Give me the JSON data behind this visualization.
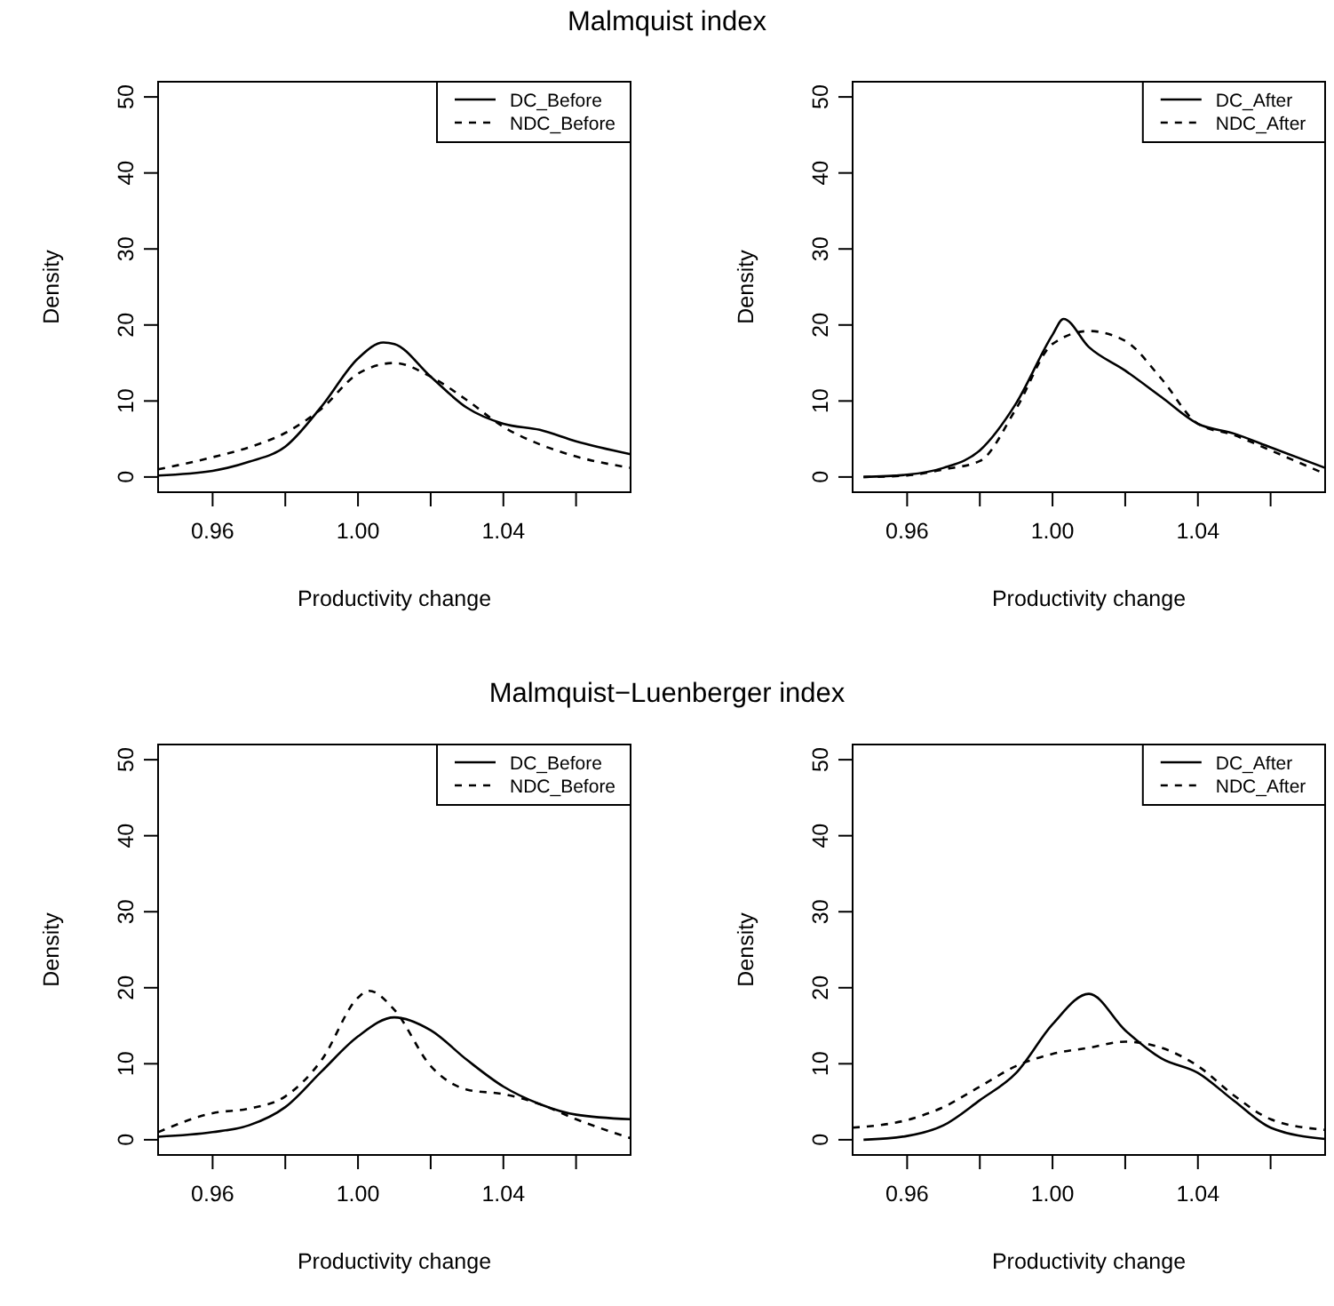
{
  "chart_data": [
    {
      "type": "line",
      "title": "Malmquist index",
      "xlabel": "Productivity change",
      "ylabel": "Density",
      "xlim": [
        0.945,
        1.075
      ],
      "ylim": [
        -2,
        52
      ],
      "xticks": [
        {
          "value": 0.96,
          "label": "0.96"
        },
        {
          "value": 0.98,
          "label": null
        },
        {
          "value": 1.0,
          "label": "1.00"
        },
        {
          "value": 1.02,
          "label": null
        },
        {
          "value": 1.04,
          "label": "1.04"
        },
        {
          "value": 1.06,
          "label": null
        }
      ],
      "yticks": [
        0,
        10,
        20,
        30,
        40,
        50
      ],
      "legend": "top right",
      "series": [
        {
          "name": "DC_Before",
          "color": "#000000",
          "line_style": "solid",
          "x": [
            0.945,
            0.96,
            0.97,
            0.98,
            0.99,
            1.0,
            1.007,
            1.01,
            1.02,
            1.03,
            1.04,
            1.05,
            1.06,
            1.075
          ],
          "values": [
            0.2,
            0.8,
            2,
            4,
            9.3,
            15.6,
            17.7,
            17.5,
            13.2,
            9.1,
            7,
            6.2,
            4.7,
            3.0
          ]
        },
        {
          "name": "NDC_Before",
          "color": "#000000",
          "line_style": "dashed",
          "x": [
            0.945,
            0.96,
            0.97,
            0.98,
            0.99,
            1.0,
            1.01,
            1.02,
            1.03,
            1.04,
            1.05,
            1.06,
            1.075
          ],
          "values": [
            1.0,
            2.6,
            3.9,
            5.8,
            9.0,
            13.6,
            15.0,
            13.2,
            10.1,
            6.6,
            4.3,
            2.7,
            1.2
          ]
        }
      ]
    },
    {
      "type": "line",
      "xlabel": "Productivity change",
      "ylabel": "Density",
      "xlim": [
        0.945,
        1.075
      ],
      "ylim": [
        -2,
        52
      ],
      "xticks": [
        {
          "value": 0.96,
          "label": "0.96"
        },
        {
          "value": 0.98,
          "label": null
        },
        {
          "value": 1.0,
          "label": "1.00"
        },
        {
          "value": 1.02,
          "label": null
        },
        {
          "value": 1.04,
          "label": "1.04"
        },
        {
          "value": 1.06,
          "label": null
        }
      ],
      "yticks": [
        0,
        10,
        20,
        30,
        40,
        50
      ],
      "legend": "top right",
      "series": [
        {
          "name": "DC_After",
          "color": "#000000",
          "line_style": "solid",
          "x": [
            0.948,
            0.96,
            0.97,
            0.98,
            0.99,
            1.0,
            1.003,
            1.01,
            1.02,
            1.03,
            1.04,
            1.05,
            1.06,
            1.075
          ],
          "values": [
            0,
            0.3,
            1.2,
            3.5,
            9.7,
            18.7,
            20.8,
            17.1,
            14.0,
            10.5,
            7,
            5.7,
            3.9,
            1.2
          ]
        },
        {
          "name": "NDC_After",
          "color": "#000000",
          "line_style": "dashed",
          "x": [
            0.948,
            0.96,
            0.97,
            0.98,
            0.99,
            1.0,
            1.01,
            1.02,
            1.03,
            1.04,
            1.05,
            1.06,
            1.075
          ],
          "values": [
            0,
            0.2,
            1.0,
            2.1,
            9.0,
            17.5,
            19.2,
            17.9,
            12.9,
            7,
            5.5,
            3.5,
            0.4
          ]
        }
      ]
    },
    {
      "type": "line",
      "title": "Malmquist−Luenberger index",
      "xlabel": "Productivity change",
      "ylabel": "Density",
      "xlim": [
        0.945,
        1.075
      ],
      "ylim": [
        -2,
        52
      ],
      "xticks": [
        {
          "value": 0.96,
          "label": "0.96"
        },
        {
          "value": 0.98,
          "label": null
        },
        {
          "value": 1.0,
          "label": "1.00"
        },
        {
          "value": 1.02,
          "label": null
        },
        {
          "value": 1.04,
          "label": "1.04"
        },
        {
          "value": 1.06,
          "label": null
        }
      ],
      "yticks": [
        0,
        10,
        20,
        30,
        40,
        50
      ],
      "legend": "top right",
      "series": [
        {
          "name": "DC_Before",
          "color": "#000000",
          "line_style": "solid",
          "x": [
            0.945,
            0.96,
            0.97,
            0.98,
            0.99,
            1.0,
            1.01,
            1.02,
            1.03,
            1.04,
            1.05,
            1.06,
            1.075
          ],
          "values": [
            0.4,
            1.0,
            1.9,
            4.3,
            9.0,
            13.6,
            16.1,
            14.4,
            10.5,
            7.0,
            4.7,
            3.3,
            2.7
          ]
        },
        {
          "name": "NDC_Before",
          "color": "#000000",
          "line_style": "dashed",
          "x": [
            0.945,
            0.96,
            0.97,
            0.98,
            0.99,
            1.0,
            1.003,
            1.01,
            1.02,
            1.03,
            1.04,
            1.05,
            1.06,
            1.075
          ],
          "values": [
            1.0,
            3.5,
            4.1,
            5.7,
            10.5,
            18.7,
            19.6,
            17.1,
            9.7,
            6.6,
            6.0,
            4.7,
            2.7,
            0.2
          ]
        }
      ]
    },
    {
      "type": "line",
      "xlabel": "Productivity change",
      "ylabel": "Density",
      "xlim": [
        0.945,
        1.075
      ],
      "ylim": [
        -2,
        52
      ],
      "xticks": [
        {
          "value": 0.96,
          "label": "0.96"
        },
        {
          "value": 0.98,
          "label": null
        },
        {
          "value": 1.0,
          "label": "1.00"
        },
        {
          "value": 1.02,
          "label": null
        },
        {
          "value": 1.04,
          "label": "1.04"
        },
        {
          "value": 1.06,
          "label": null
        }
      ],
      "yticks": [
        0,
        10,
        20,
        30,
        40,
        50
      ],
      "legend": "top right",
      "series": [
        {
          "name": "DC_After",
          "color": "#000000",
          "line_style": "solid",
          "x": [
            0.948,
            0.96,
            0.97,
            0.98,
            0.99,
            1.0,
            1.01,
            1.02,
            1.03,
            1.04,
            1.05,
            1.06,
            1.075
          ],
          "values": [
            0,
            0.5,
            1.9,
            5.2,
            8.8,
            15.2,
            19.2,
            14.4,
            10.7,
            8.8,
            5.1,
            1.6,
            0.1
          ]
        },
        {
          "name": "NDC_After",
          "color": "#000000",
          "line_style": "dashed",
          "x": [
            0.945,
            0.96,
            0.97,
            0.98,
            0.99,
            1.0,
            1.01,
            1.02,
            1.03,
            1.04,
            1.05,
            1.06,
            1.075
          ],
          "values": [
            1.6,
            2.6,
            4.3,
            7.0,
            9.7,
            11.3,
            12.1,
            12.9,
            12.1,
            9.7,
            5.8,
            2.7,
            1.3
          ]
        }
      ]
    }
  ]
}
